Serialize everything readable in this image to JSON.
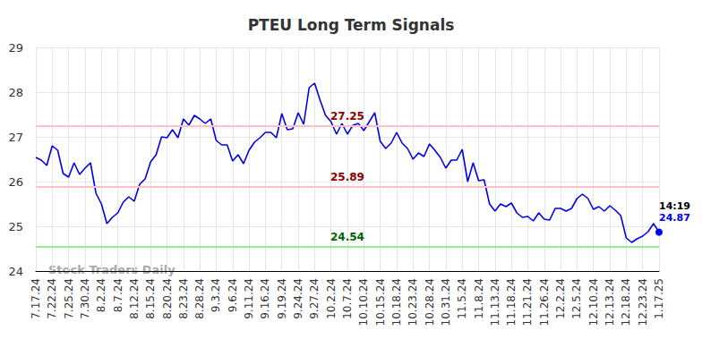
{
  "chart_data": {
    "type": "line",
    "title": "PTEU Long Term Signals",
    "categories": [
      "7.17.24",
      null,
      null,
      "7.22.24",
      null,
      null,
      "7.25.24",
      null,
      null,
      "7.30.24",
      null,
      null,
      "8.2.24",
      null,
      null,
      "8.7.24",
      null,
      null,
      "8.12.24",
      null,
      null,
      "8.15.24",
      null,
      null,
      "8.20.24",
      null,
      null,
      "8.23.24",
      null,
      null,
      "8.28.24",
      null,
      null,
      "9.3.24",
      null,
      null,
      "9.6.24",
      null,
      null,
      "9.11.24",
      null,
      null,
      "9.16.24",
      null,
      null,
      "9.19.24",
      null,
      null,
      "9.24.24",
      null,
      null,
      "9.27.24",
      null,
      null,
      "10.2.24",
      null,
      null,
      "10.7.24",
      null,
      null,
      "10.10.24",
      null,
      null,
      "10.15.24",
      null,
      null,
      "10.18.24",
      null,
      null,
      "10.23.24",
      null,
      null,
      "10.28.24",
      null,
      null,
      "10.31.24",
      null,
      null,
      "11.5.24",
      null,
      null,
      "11.8.24",
      null,
      null,
      "11.13.24",
      null,
      null,
      "11.18.24",
      null,
      null,
      "11.21.24",
      null,
      null,
      "11.26.24",
      null,
      null,
      "12.2.24",
      null,
      null,
      "12.5.24",
      null,
      null,
      "12.10.24",
      null,
      null,
      "12.13.24",
      null,
      null,
      "12.18.24",
      null,
      null,
      "12.23.24",
      null,
      null,
      "1.17.25"
    ],
    "values": [
      26.54,
      26.48,
      26.36,
      26.8,
      26.7,
      26.18,
      26.1,
      26.42,
      26.16,
      26.3,
      26.42,
      25.74,
      25.5,
      25.06,
      25.2,
      25.3,
      25.54,
      25.66,
      25.56,
      25.94,
      26.06,
      26.44,
      26.6,
      27.0,
      26.98,
      27.16,
      26.98,
      27.4,
      27.26,
      27.48,
      27.4,
      27.3,
      27.4,
      26.92,
      26.82,
      26.82,
      26.46,
      26.6,
      26.4,
      26.7,
      26.88,
      26.98,
      27.1,
      27.1,
      26.98,
      27.52,
      27.16,
      27.18,
      27.54,
      27.28,
      28.1,
      28.2,
      27.82,
      27.48,
      27.34,
      27.06,
      27.3,
      27.06,
      27.26,
      27.3,
      27.14,
      27.34,
      27.54,
      26.9,
      26.74,
      26.86,
      27.1,
      26.86,
      26.74,
      26.5,
      26.64,
      26.56,
      26.84,
      26.7,
      26.54,
      26.3,
      26.48,
      26.48,
      26.72,
      26.0,
      26.42,
      26.02,
      26.04,
      25.5,
      25.34,
      25.5,
      25.44,
      25.52,
      25.3,
      25.2,
      25.22,
      25.12,
      25.3,
      25.16,
      25.14,
      25.4,
      25.4,
      25.34,
      25.4,
      25.62,
      25.72,
      25.62,
      25.38,
      25.44,
      25.34,
      25.46,
      25.36,
      25.24,
      24.74,
      24.64,
      24.72,
      24.78,
      24.88,
      25.06,
      24.87
    ],
    "color": "#0000ee",
    "ylim": [
      24,
      29
    ],
    "yticks": [
      24,
      25,
      26,
      27,
      28,
      29
    ],
    "grid": true,
    "levels": [
      {
        "value": 27.25,
        "color": "#ffc0c8"
      },
      {
        "value": 25.89,
        "color": "#ffc0c8"
      },
      {
        "value": 24.54,
        "color": "#90ee90"
      }
    ],
    "annotations": {
      "watermark": "Stock Traders Daily",
      "last_time": "14:19"
    }
  }
}
